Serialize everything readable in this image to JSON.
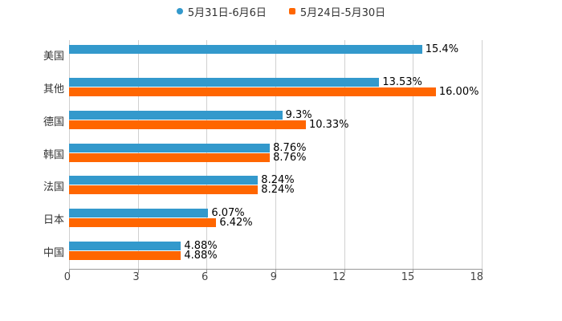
{
  "chart_data": {
    "type": "bar",
    "orientation": "horizontal",
    "title": "",
    "xlabel": "",
    "ylabel": "",
    "xlim": [
      0,
      18
    ],
    "x_ticks": [
      "0",
      "3",
      "6",
      "9",
      "12",
      "15",
      "18"
    ],
    "grid": true,
    "legend_position": "top",
    "categories": [
      "美国",
      "其他",
      "德国",
      "韩国",
      "法国",
      "日本",
      "中国"
    ],
    "series": [
      {
        "name": "5月31日-6月6日",
        "color": "#3399cc",
        "values": [
          15.4,
          13.53,
          9.3,
          8.76,
          8.24,
          6.07,
          4.88
        ],
        "labels": [
          "15.4%",
          "13.53%",
          "9.3%",
          "8.76%",
          "8.24%",
          "6.07%",
          "4.88%"
        ]
      },
      {
        "name": "5月24日-5月30日",
        "color": "#ff6600",
        "values": [
          null,
          16.0,
          10.33,
          8.76,
          8.24,
          6.42,
          4.88
        ],
        "labels": [
          "",
          "16.00%",
          "10.33%",
          "8.76%",
          "8.24%",
          "6.42%",
          "4.88%"
        ]
      }
    ]
  },
  "legend": {
    "items": [
      {
        "label": "5月31日-6月6日",
        "color": "#3399cc"
      },
      {
        "label": "5月24日-5月30日",
        "color": "#ff6600"
      }
    ]
  }
}
